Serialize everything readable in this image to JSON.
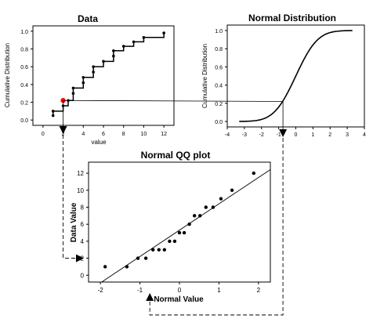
{
  "chart_data": [
    {
      "type": "step",
      "title": "Data",
      "xlabel": "value",
      "ylabel": "Cumulative Distribution",
      "xlim": [
        -1,
        13
      ],
      "ylim": [
        -0.06,
        1.06
      ],
      "xticks": [
        "0",
        "2",
        "4",
        "6",
        "8",
        "10",
        "12"
      ],
      "xtick_values": [
        0,
        2,
        4,
        6,
        8,
        10,
        12
      ],
      "yticks": [
        "0.0",
        "0.2",
        "0.4",
        "0.6",
        "0.8",
        "1.0"
      ],
      "ytick_values": [
        0,
        0.2,
        0.4,
        0.6,
        0.8,
        1.0
      ],
      "x": [
        1,
        1,
        2,
        2.5,
        3,
        3,
        4,
        4,
        5,
        5,
        6,
        7,
        7,
        8,
        9,
        10,
        12
      ],
      "y": [
        0.05,
        0.1,
        0.16,
        0.22,
        0.3,
        0.36,
        0.42,
        0.48,
        0.54,
        0.6,
        0.66,
        0.72,
        0.78,
        0.83,
        0.88,
        0.93,
        0.98
      ],
      "highlight": {
        "x": 2,
        "y": 0.22,
        "color": "#ff0000"
      }
    },
    {
      "type": "line",
      "title": "Normal Distribution",
      "xlabel": "",
      "ylabel": "Cumulative Distribution",
      "xlim": [
        -4,
        4
      ],
      "ylim": [
        -0.06,
        1.06
      ],
      "xticks": [
        "-4",
        "-3",
        "-2",
        "-1",
        "0",
        "1",
        "2",
        "3",
        "4"
      ],
      "xtick_values": [
        -4,
        -3,
        -2,
        -1,
        0,
        1,
        2,
        3,
        4
      ],
      "yticks": [
        "0.0",
        "0.2",
        "0.4",
        "0.6",
        "0.8",
        "1.0"
      ],
      "ytick_values": [
        0,
        0.2,
        0.4,
        0.6,
        0.8,
        1.0
      ],
      "curve_range": [
        -3.3,
        3.3
      ],
      "series": [
        {
          "function": "standard normal CDF"
        }
      ],
      "mapped_point": {
        "x": -0.75,
        "y": 0.22
      }
    },
    {
      "type": "scatter",
      "title": "Normal QQ plot",
      "xlabel": "Normal Value",
      "ylabel": "Data Value",
      "xlim": [
        -2.3,
        2.3
      ],
      "ylim": [
        -0.8,
        13.3
      ],
      "xticks": [
        "-2",
        "-1",
        "0",
        "1",
        "2"
      ],
      "xtick_values": [
        -2,
        -1,
        0,
        1,
        2
      ],
      "yticks": [
        "0",
        "2",
        "4",
        "6",
        "8",
        "10",
        "12"
      ],
      "ytick_values": [
        0,
        2,
        4,
        6,
        8,
        10,
        12
      ],
      "x": [
        -1.88,
        -1.33,
        -1.05,
        -0.85,
        -0.67,
        -0.52,
        -0.38,
        -0.25,
        -0.12,
        0.0,
        0.12,
        0.25,
        0.38,
        0.52,
        0.67,
        0.85,
        1.05,
        1.33,
        1.88
      ],
      "y": [
        1,
        1,
        2,
        2,
        3,
        3,
        3,
        4,
        4,
        5,
        5,
        6,
        7,
        7,
        8,
        8,
        9,
        10,
        12
      ],
      "reference_line": {
        "intercept": 5.3,
        "slope": 3.1
      },
      "mapped_point": {
        "x": -0.75,
        "y": 2
      }
    }
  ]
}
